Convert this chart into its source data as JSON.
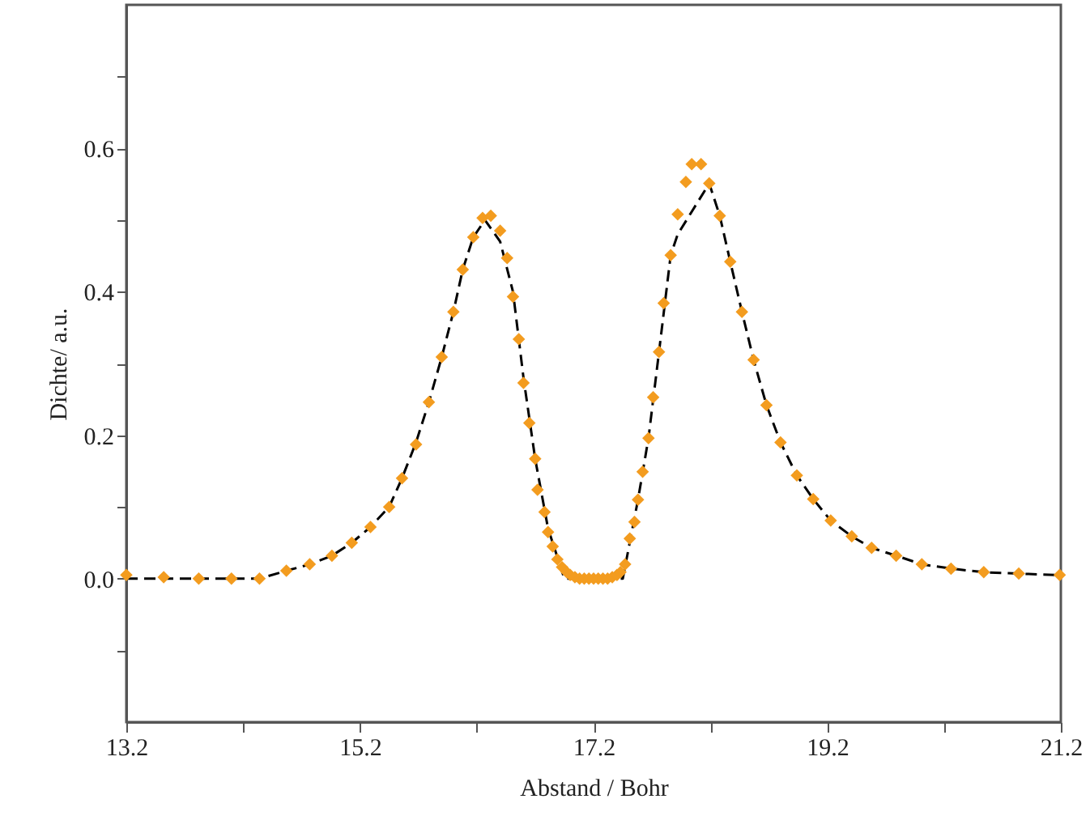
{
  "chart_data": {
    "type": "scatter",
    "xlabel": "Abstand / Bohr",
    "ylabel": "Dichte/ a.u.",
    "xlim": [
      13.2,
      21.2
    ],
    "ylim": [
      -0.2,
      0.8
    ],
    "xticks": [
      13.2,
      {
        "value": 14.2,
        "label": null
      },
      15.2,
      {
        "value": 16.2,
        "label": null
      },
      17.2,
      {
        "value": 18.2,
        "label": null
      },
      19.2,
      {
        "value": 20.2,
        "label": null
      },
      21.2
    ],
    "yticks": [
      {
        "value": -0.1,
        "label": null
      },
      {
        "value": 0,
        "label": "0.0"
      },
      {
        "value": 0.1,
        "label": null
      },
      0.2,
      {
        "value": 0.3,
        "label": null
      },
      0.4,
      {
        "value": 0.5,
        "label": null
      },
      0.6,
      {
        "value": 0.7,
        "label": null
      }
    ],
    "grid": false,
    "series": [
      {
        "type": "line",
        "color": "#000000",
        "line_style": "dashed",
        "marker": "none",
        "x": [
          13.2,
          13.52,
          13.82,
          14.1,
          14.34,
          14.57,
          14.77,
          14.96,
          15.13,
          15.29,
          15.45,
          15.56,
          15.68,
          15.79,
          15.9,
          16.0,
          16.08,
          16.17,
          16.27,
          16.4,
          16.51,
          16.6,
          16.7,
          16.81,
          16.95,
          17.45,
          17.58,
          17.67,
          17.76,
          17.86,
          17.92,
          18.19,
          18.28,
          18.37,
          18.47,
          18.57,
          18.68,
          18.8,
          18.94,
          19.08,
          19.23,
          19.41,
          19.58,
          19.79,
          20.01,
          20.26,
          20.54,
          20.84,
          21.19
        ],
        "values": [
          0,
          0,
          0,
          0,
          0,
          0.011,
          0.02,
          0.032,
          0.05,
          0.072,
          0.1,
          0.14,
          0.19,
          0.246,
          0.309,
          0.372,
          0.431,
          0.476,
          0.5,
          0.47,
          0.4,
          0.28,
          0.167,
          0.07,
          0,
          0,
          0.11,
          0.196,
          0.316,
          0.451,
          0.48,
          0.551,
          0.506,
          0.442,
          0.372,
          0.305,
          0.242,
          0.19,
          0.144,
          0.111,
          0.081,
          0.059,
          0.043,
          0.032,
          0.02,
          0.014,
          0.009,
          0.007,
          0.005
        ]
      },
      {
        "color": "#f39c1f",
        "marker": "diamond",
        "x": [
          13.2,
          13.52,
          13.82,
          14.1,
          14.34,
          14.57,
          14.77,
          14.96,
          15.13,
          15.29,
          15.45,
          15.56,
          15.68,
          15.79,
          15.9,
          16.0,
          16.08,
          16.17,
          16.25,
          16.32,
          16.4,
          16.46,
          16.51,
          16.56,
          16.6,
          16.65,
          16.7,
          16.72,
          16.78,
          16.81,
          16.85,
          16.89,
          16.93,
          16.97,
          17.0,
          17.04,
          17.08,
          17.12,
          17.16,
          17.2,
          17.24,
          17.28,
          17.32,
          17.36,
          17.4,
          17.43,
          17.47,
          17.51,
          17.55,
          17.58,
          17.62,
          17.67,
          17.71,
          17.76,
          17.8,
          17.86,
          17.92,
          17.99,
          18.04,
          18.12,
          18.19,
          18.28,
          18.37,
          18.47,
          18.57,
          18.68,
          18.8,
          18.94,
          19.08,
          19.23,
          19.41,
          19.58,
          19.79,
          20.01,
          20.26,
          20.54,
          20.84,
          21.19
        ],
        "values": [
          0.005,
          0.002,
          0,
          0,
          0,
          0.011,
          0.02,
          0.032,
          0.05,
          0.072,
          0.1,
          0.14,
          0.187,
          0.246,
          0.309,
          0.372,
          0.431,
          0.476,
          0.503,
          0.506,
          0.485,
          0.447,
          0.393,
          0.334,
          0.273,
          0.217,
          0.167,
          0.124,
          0.093,
          0.065,
          0.045,
          0.027,
          0.016,
          0.009,
          0.005,
          0.002,
          0,
          0,
          0,
          0,
          0,
          0,
          0,
          0.002,
          0.005,
          0.009,
          0.02,
          0.056,
          0.079,
          0.11,
          0.149,
          0.196,
          0.253,
          0.316,
          0.384,
          0.451,
          0.508,
          0.553,
          0.578,
          0.578,
          0.551,
          0.506,
          0.442,
          0.372,
          0.305,
          0.242,
          0.19,
          0.144,
          0.111,
          0.081,
          0.059,
          0.043,
          0.032,
          0.02,
          0.014,
          0.009,
          0.007,
          0.005
        ]
      }
    ]
  }
}
